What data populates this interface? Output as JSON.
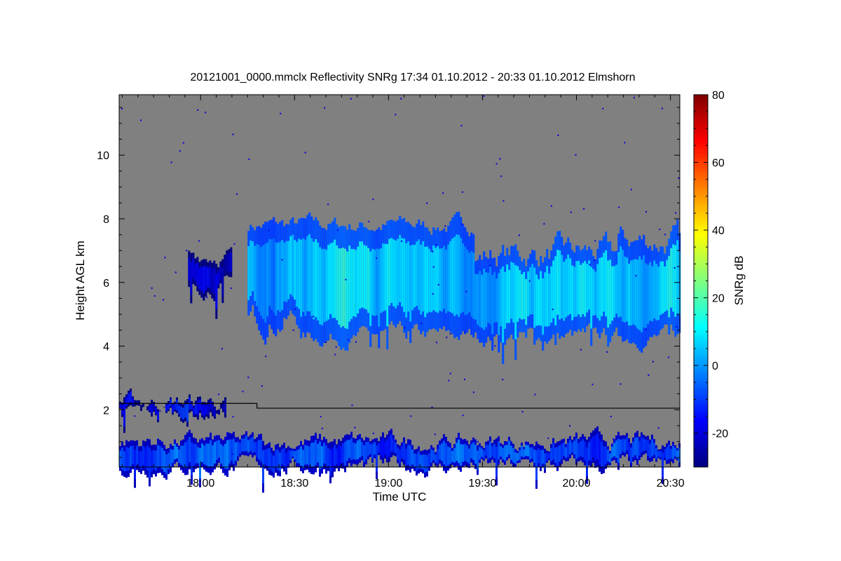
{
  "chart_data": {
    "type": "heatmap",
    "title": "20121001_0000.mmclx Reflectivity SNRg   17:34 01.10.2012 - 20:33 01.10.2012 Elmshorn",
    "xlabel": "Time UTC",
    "ylabel": "Height AGL km",
    "x_range": [
      "17:34",
      "20:33"
    ],
    "x_ticks": [
      "18:00",
      "18:30",
      "19:00",
      "19:30",
      "20:00",
      "20:30"
    ],
    "y_range": [
      0.2,
      11.9
    ],
    "y_ticks": [
      "2",
      "4",
      "6",
      "8",
      "10"
    ],
    "y_tick_values": [
      2,
      4,
      6,
      8,
      10
    ],
    "colorbar": {
      "label": "SNRg dB",
      "range": [
        -30,
        80
      ],
      "ticks": [
        "-20",
        "0",
        "20",
        "40",
        "60",
        "80"
      ],
      "tick_values": [
        -20,
        0,
        20,
        40,
        60,
        80
      ],
      "colormap": "jet"
    },
    "background_color": "#808080",
    "features": [
      {
        "name": "main cloud layer",
        "time_start": "18:15",
        "time_end": "20:33",
        "base_km": 4.3,
        "top_km": 7.8,
        "peak_snr_db": 10
      },
      {
        "name": "small patch",
        "time_start": "17:56",
        "time_end": "18:10",
        "base_km": 5.9,
        "top_km": 6.9,
        "peak_snr_db": -15
      },
      {
        "name": "low layer",
        "time_start": "17:34",
        "time_end": "18:08",
        "base_km": 1.9,
        "top_km": 2.25,
        "peak_snr_db": -15
      },
      {
        "name": "near-surface echoes",
        "time_start": "17:34",
        "time_end": "20:33",
        "base_km": 0.2,
        "top_km": 1.0,
        "peak_snr_db": -5
      }
    ],
    "boundary_line": [
      {
        "time": "17:34",
        "height_km": 2.2
      },
      {
        "time": "18:18",
        "height_km": 2.2
      },
      {
        "time": "18:18",
        "height_km": 2.05
      },
      {
        "time": "20:33",
        "height_km": 2.05
      }
    ]
  }
}
